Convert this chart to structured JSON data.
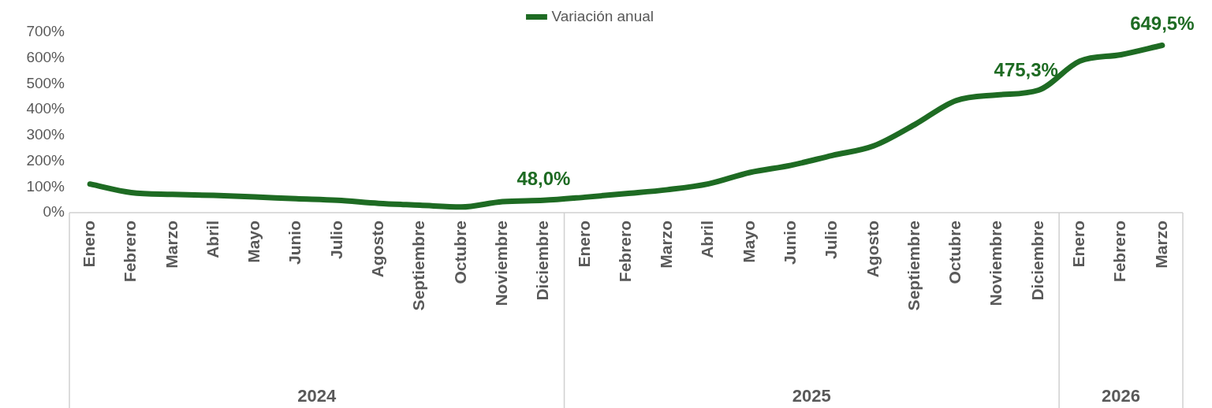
{
  "chart_data": {
    "type": "line",
    "categories": [
      "Enero",
      "Febrero",
      "Marzo",
      "Abril",
      "Mayo",
      "Junio",
      "Julio",
      "Agosto",
      "Septiembre",
      "Octubre",
      "Noviembre",
      "Diciembre",
      "Enero",
      "Febrero",
      "Marzo",
      "Abril",
      "Mayo",
      "Junio",
      "Julio",
      "Agosto",
      "Septiembre",
      "Octubre",
      "Noviembre",
      "Diciembre",
      "Enero",
      "Febrero",
      "Marzo"
    ],
    "series": [
      {
        "name": "Variación anual",
        "color": "#1e6b23",
        "values": [
          111,
          78,
          71,
          67,
          61,
          54,
          48,
          36,
          29,
          22,
          43,
          48.0,
          60,
          74,
          89,
          112,
          156,
          184,
          222,
          259,
          342,
          435,
          457,
          475.3,
          588,
          613,
          649.5
        ],
        "value_labels": [
          null,
          null,
          null,
          null,
          null,
          null,
          null,
          null,
          null,
          null,
          null,
          "48,0%",
          null,
          null,
          null,
          null,
          null,
          null,
          null,
          null,
          null,
          null,
          null,
          "475,3%",
          null,
          null,
          "649,5%"
        ]
      }
    ],
    "ylim": [
      0,
      700
    ],
    "yticks": [
      {
        "value": 0,
        "label": "0%"
      },
      {
        "value": 100,
        "label": "100%"
      },
      {
        "value": 200,
        "label": "200%"
      },
      {
        "value": 300,
        "label": "300%"
      },
      {
        "value": 400,
        "label": "400%"
      },
      {
        "value": 500,
        "label": "500%"
      },
      {
        "value": 600,
        "label": "600%"
      },
      {
        "value": 700,
        "label": "700%"
      }
    ],
    "annotations": [
      "2024",
      "2025",
      "2026"
    ],
    "legend": "top",
    "grid": false,
    "marker": "none",
    "line_style": "solid"
  }
}
